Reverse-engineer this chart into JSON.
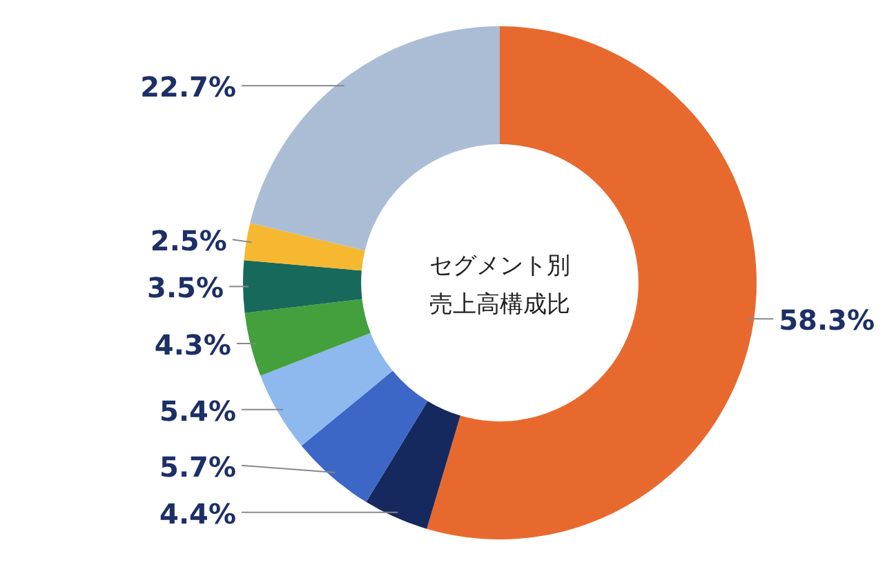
{
  "chart_data": {
    "type": "donut",
    "title": "セグメント別売上高構成比",
    "categories": [
      null,
      null,
      null,
      null,
      null,
      null,
      null,
      null
    ],
    "values": [
      58.3,
      4.4,
      5.7,
      5.4,
      4.3,
      3.5,
      2.5,
      22.7
    ],
    "colors": [
      "#e8692d",
      "#15295e",
      "#3c67c6",
      "#8db9ee",
      "#43a03c",
      "#17695b",
      "#f5b830",
      "#aabdd4"
    ],
    "value_labels": [
      "58.3%",
      "4.4%",
      "5.7%",
      "5.4%",
      "4.3%",
      "3.5%",
      "2.5%",
      "22.7%"
    ]
  }
}
